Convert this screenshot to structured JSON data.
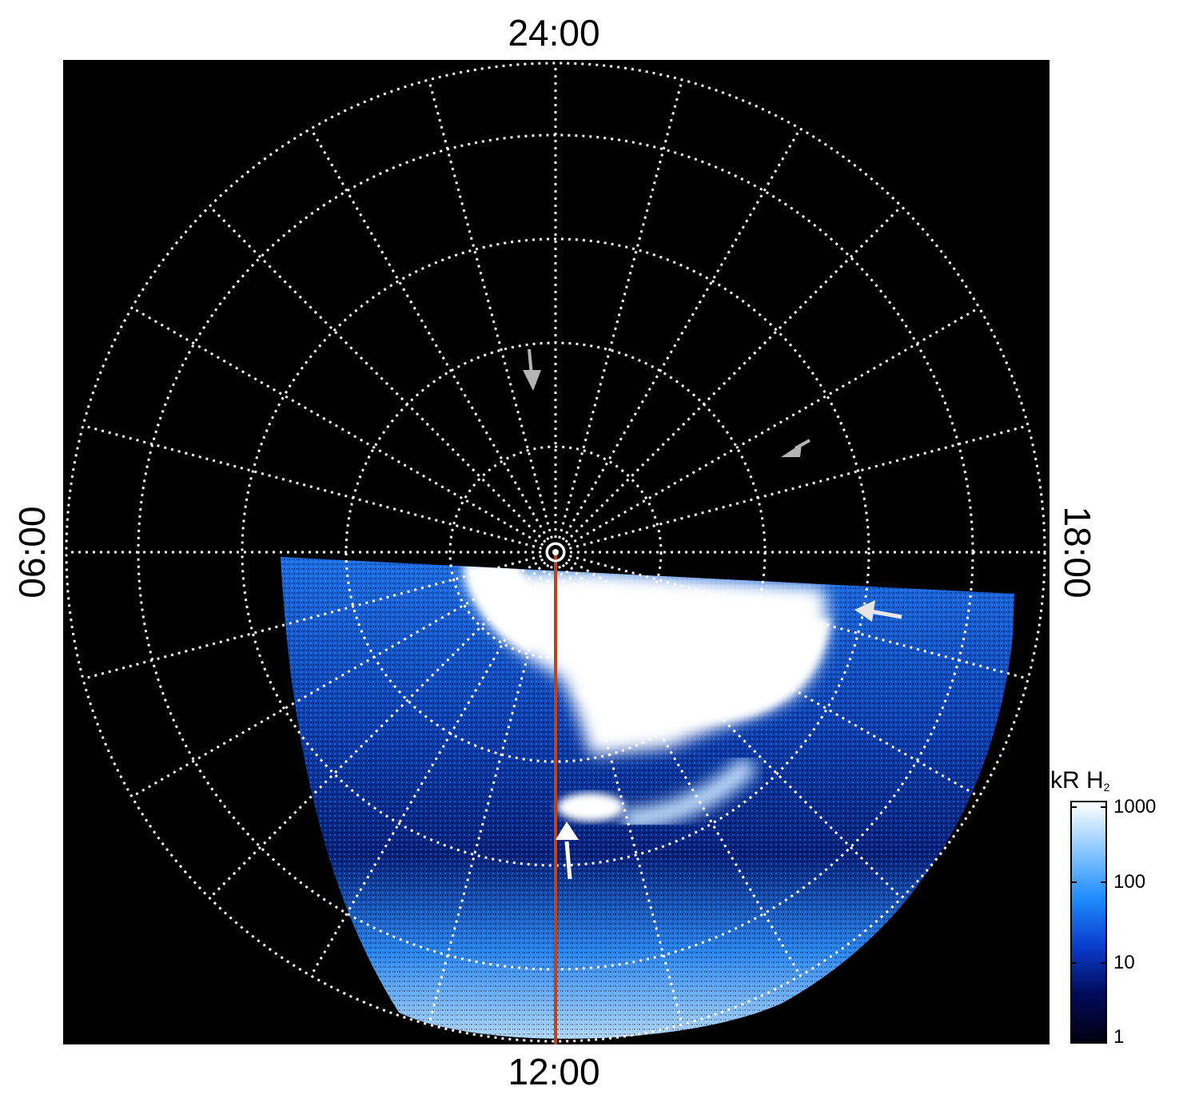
{
  "local_time_labels": {
    "top": "24:00",
    "bottom": "12:00",
    "left": "06:00",
    "right": "18:00"
  },
  "colorbar": {
    "title_main": "kR H",
    "title_sub": "2",
    "ticks": [
      "1000",
      "100",
      "10",
      "1"
    ],
    "scale": "log",
    "range": [
      1,
      1000
    ],
    "colors": [
      "#000010",
      "#000a5a",
      "#0a3ccc",
      "#1e8cff",
      "#8cc8ff",
      "#ffffff"
    ]
  },
  "colors": {
    "background": "#000000",
    "grid": "#ffffff",
    "meridian_line": "#c0421a",
    "arrow_gray": "#b4b4b4",
    "arrow_white": "#ffffff"
  }
}
